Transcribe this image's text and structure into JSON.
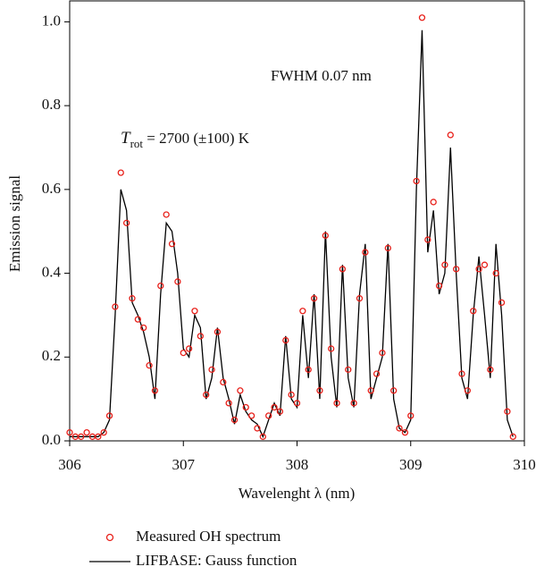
{
  "chart_data": {
    "type": "line_scatter",
    "xlabel": "Wavelenght λ (nm)",
    "ylabel": "Emission signal",
    "annotations": [
      {
        "text": "FWHM 0.07 nm"
      },
      {
        "symbol": "T",
        "subscript": "rot",
        "text": " = 2700 (±100) K"
      }
    ],
    "xlim": [
      306,
      310
    ],
    "xticks": [
      306,
      307,
      308,
      309,
      310
    ],
    "ylim": [
      0,
      1.05
    ],
    "yticks": [
      {
        "value": 0,
        "label": "0.0"
      },
      {
        "value": 0.2,
        "label": "0.2"
      },
      {
        "value": 0.4,
        "label": "0.4"
      },
      {
        "value": 0.6,
        "label": "0.6"
      },
      {
        "value": 0.8,
        "label": "0.8"
      },
      {
        "value": 1.0,
        "label": "1.0"
      }
    ],
    "x": [
      306.0,
      306.05,
      306.1,
      306.15,
      306.2,
      306.25,
      306.3,
      306.35,
      306.4,
      306.45,
      306.5,
      306.55,
      306.6,
      306.65,
      306.7,
      306.75,
      306.8,
      306.85,
      306.9,
      306.95,
      307.0,
      307.05,
      307.1,
      307.15,
      307.2,
      307.25,
      307.3,
      307.35,
      307.4,
      307.45,
      307.5,
      307.55,
      307.6,
      307.65,
      307.7,
      307.75,
      307.8,
      307.85,
      307.9,
      307.95,
      308.0,
      308.05,
      308.1,
      308.15,
      308.2,
      308.25,
      308.3,
      308.35,
      308.4,
      308.45,
      308.5,
      308.55,
      308.6,
      308.65,
      308.7,
      308.75,
      308.8,
      308.85,
      308.9,
      308.95,
      309.0,
      309.05,
      309.1,
      309.15,
      309.2,
      309.25,
      309.3,
      309.35,
      309.4,
      309.45,
      309.5,
      309.55,
      309.6,
      309.65,
      309.7,
      309.75,
      309.8,
      309.85,
      309.9
    ],
    "series": [
      {
        "name": "Measured OH spectrum",
        "kind": "scatter",
        "color": "#e8201a",
        "values": [
          0.02,
          0.01,
          0.01,
          0.02,
          0.01,
          0.01,
          0.02,
          0.06,
          0.32,
          0.64,
          0.52,
          0.34,
          0.29,
          0.27,
          0.18,
          0.12,
          0.37,
          0.54,
          0.47,
          0.38,
          0.21,
          0.22,
          0.31,
          0.25,
          0.11,
          0.17,
          0.26,
          0.14,
          0.09,
          0.05,
          0.12,
          0.08,
          0.06,
          0.03,
          0.01,
          0.06,
          0.08,
          0.07,
          0.24,
          0.11,
          0.09,
          0.31,
          0.17,
          0.34,
          0.12,
          0.49,
          0.22,
          0.09,
          0.41,
          0.17,
          0.09,
          0.34,
          0.45,
          0.12,
          0.16,
          0.21,
          0.46,
          0.12,
          0.03,
          0.02,
          0.06,
          0.62,
          1.01,
          0.48,
          0.57,
          0.37,
          0.42,
          0.73,
          0.41,
          0.16,
          0.12,
          0.31,
          0.41,
          0.42,
          0.17,
          0.4,
          0.33,
          0.07,
          0.01
        ]
      },
      {
        "name": "LIFBASE: Gauss function",
        "kind": "line",
        "color": "#000000",
        "values": [
          0.01,
          0.01,
          0.01,
          0.01,
          0.01,
          0.01,
          0.02,
          0.05,
          0.3,
          0.6,
          0.55,
          0.33,
          0.3,
          0.26,
          0.2,
          0.1,
          0.35,
          0.52,
          0.5,
          0.4,
          0.22,
          0.2,
          0.3,
          0.27,
          0.1,
          0.15,
          0.27,
          0.15,
          0.1,
          0.04,
          0.11,
          0.07,
          0.05,
          0.04,
          0.01,
          0.05,
          0.09,
          0.06,
          0.25,
          0.1,
          0.08,
          0.3,
          0.15,
          0.35,
          0.1,
          0.5,
          0.2,
          0.08,
          0.42,
          0.15,
          0.08,
          0.35,
          0.47,
          0.1,
          0.15,
          0.2,
          0.47,
          0.1,
          0.03,
          0.02,
          0.05,
          0.6,
          0.98,
          0.45,
          0.55,
          0.35,
          0.4,
          0.7,
          0.4,
          0.15,
          0.1,
          0.3,
          0.44,
          0.3,
          0.15,
          0.47,
          0.3,
          0.05,
          0.01
        ]
      }
    ]
  }
}
